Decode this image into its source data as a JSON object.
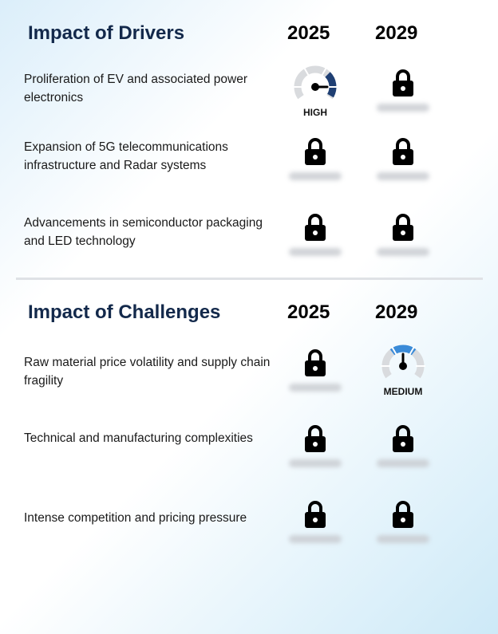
{
  "drivers": {
    "heading": "Impact of Drivers",
    "year_a": "2025",
    "year_b": "2029",
    "rows": [
      {
        "label": "Proliferation of EV and associated power electronics",
        "a": {
          "kind": "gauge",
          "level": "HIGH",
          "fill": 0.85,
          "color": "#1f3f73"
        },
        "b": {
          "kind": "lock"
        }
      },
      {
        "label": "Expansion of 5G telecommunications infrastructure and Radar systems",
        "a": {
          "kind": "lock"
        },
        "b": {
          "kind": "lock"
        }
      },
      {
        "label": "Advancements in semiconductor packaging and LED technology",
        "a": {
          "kind": "lock"
        },
        "b": {
          "kind": "lock"
        }
      }
    ]
  },
  "challenges": {
    "heading": "Impact of Challenges",
    "year_a": "2025",
    "year_b": "2029",
    "rows": [
      {
        "label": "Raw material price volatility and supply chain fragility",
        "a": {
          "kind": "lock"
        },
        "b": {
          "kind": "gauge",
          "level": "MEDIUM",
          "fill": 0.5,
          "color": "#3a8bd8"
        }
      },
      {
        "label": "Technical and manufacturing complexities",
        "a": {
          "kind": "lock"
        },
        "b": {
          "kind": "lock"
        }
      },
      {
        "label": "Intense competition and pricing pressure",
        "a": {
          "kind": "lock"
        },
        "b": {
          "kind": "lock"
        }
      }
    ]
  },
  "icons": {
    "lock": "lock-icon",
    "gauge": "gauge-icon"
  }
}
